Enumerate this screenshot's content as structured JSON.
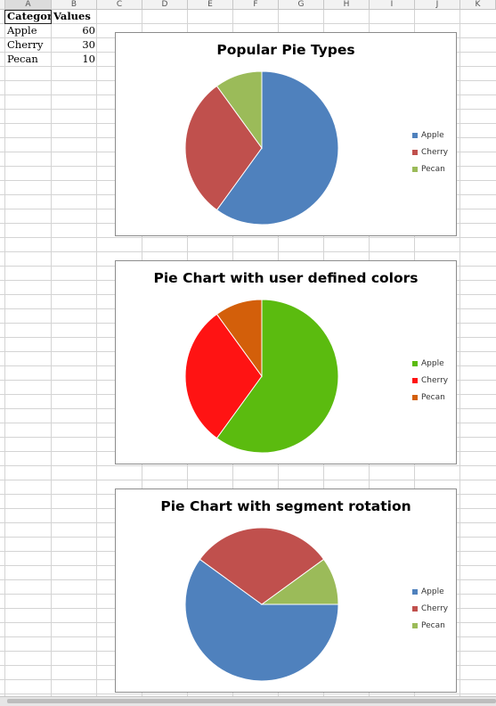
{
  "sheet": {
    "column_headers": [
      "A",
      "B",
      "C",
      "D",
      "E",
      "F",
      "G",
      "H",
      "I",
      "J",
      "K"
    ],
    "header_row": [
      "Category",
      "Values"
    ],
    "rows": [
      {
        "category": "Apple",
        "value": "60"
      },
      {
        "category": "Cherry",
        "value": "30"
      },
      {
        "category": "Pecan",
        "value": "10"
      }
    ]
  },
  "chart_data": [
    {
      "type": "pie",
      "title": "Popular Pie Types",
      "categories": [
        "Apple",
        "Cherry",
        "Pecan"
      ],
      "values": [
        60,
        30,
        10
      ],
      "colors": [
        "#4f81bd",
        "#c0504d",
        "#9bbb59"
      ],
      "start_angle": 0,
      "legend": "right"
    },
    {
      "type": "pie",
      "title": "Pie Chart with user defined colors",
      "categories": [
        "Apple",
        "Cherry",
        "Pecan"
      ],
      "values": [
        60,
        30,
        10
      ],
      "colors": [
        "#5bbb0f",
        "#ff1313",
        "#d35f0a"
      ],
      "start_angle": 0,
      "legend": "right"
    },
    {
      "type": "pie",
      "title": "Pie Chart with segment rotation",
      "categories": [
        "Apple",
        "Cherry",
        "Pecan"
      ],
      "values": [
        60,
        30,
        10
      ],
      "colors": [
        "#4f81bd",
        "#c0504d",
        "#9bbb59"
      ],
      "start_angle": 90,
      "legend": "right"
    }
  ]
}
